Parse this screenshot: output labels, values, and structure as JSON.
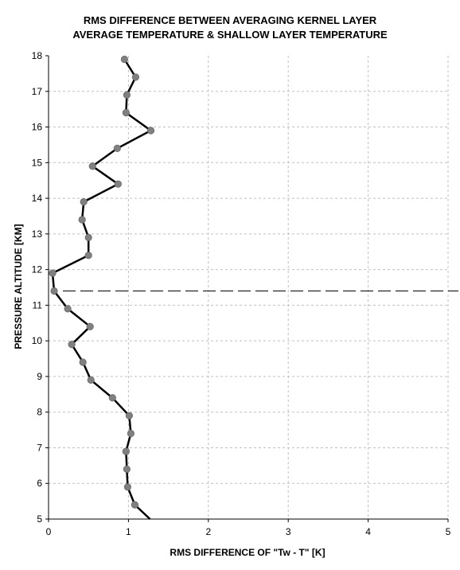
{
  "chart_data": {
    "type": "line",
    "title_lines": [
      "RMS DIFFERENCE BETWEEN AVERAGING KERNEL LAYER",
      "AVERAGE TEMPERATURE & SHALLOW LAYER TEMPERATURE"
    ],
    "xlabel": "RMS DIFFERENCE OF \"Tw - T\" [K]",
    "ylabel": "PRESSURE ALTITUDE [KM]",
    "xlim": [
      0,
      5
    ],
    "ylim": [
      5,
      18
    ],
    "x_ticks": [
      "0",
      "1",
      "2",
      "3",
      "4",
      "5"
    ],
    "y_ticks": [
      "5",
      "6",
      "7",
      "8",
      "9",
      "10",
      "11",
      "12",
      "13",
      "14",
      "15",
      "16",
      "17",
      "18"
    ],
    "grid": true,
    "reference_line": {
      "style": "dashed",
      "y": 11.4
    },
    "colors": {
      "line": "#000000",
      "marker": "#808080",
      "grid": "#c0c0c0"
    },
    "series": [
      {
        "points": [
          [
            1.27,
            5.0
          ],
          [
            1.08,
            5.4
          ],
          [
            0.99,
            5.9
          ],
          [
            0.98,
            6.4
          ],
          [
            0.97,
            6.9
          ],
          [
            1.03,
            7.4
          ],
          [
            1.01,
            7.9
          ],
          [
            0.8,
            8.4
          ],
          [
            0.53,
            8.9
          ],
          [
            0.43,
            9.4
          ],
          [
            0.29,
            9.9
          ],
          [
            0.52,
            10.4
          ],
          [
            0.24,
            10.9
          ],
          [
            0.07,
            11.4
          ],
          [
            0.05,
            11.9
          ],
          [
            0.5,
            12.4
          ],
          [
            0.5,
            12.9
          ],
          [
            0.42,
            13.4
          ],
          [
            0.44,
            13.9
          ],
          [
            0.87,
            14.4
          ],
          [
            0.55,
            14.9
          ],
          [
            0.86,
            15.4
          ],
          [
            1.28,
            15.9
          ],
          [
            0.97,
            16.4
          ],
          [
            0.98,
            16.9
          ],
          [
            1.09,
            17.4
          ],
          [
            0.95,
            17.9
          ]
        ]
      }
    ]
  }
}
